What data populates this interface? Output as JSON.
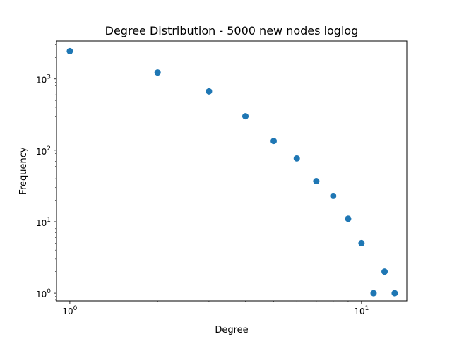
{
  "chart_data": {
    "type": "scatter",
    "title": "Degree Distribution - 5000 new nodes loglog",
    "xlabel": "Degree",
    "ylabel": "Frequency",
    "xscale": "log",
    "yscale": "log",
    "xlim": [
      0.9,
      14.3
    ],
    "ylim": [
      0.78,
      3400
    ],
    "grid": false,
    "legend": "none",
    "marker_color": "#1f77b4",
    "x_ticks": [
      {
        "value": 1,
        "base": "10",
        "exp": "0"
      },
      {
        "value": 10,
        "base": "10",
        "exp": "1"
      }
    ],
    "y_ticks": [
      {
        "value": 1,
        "base": "10",
        "exp": "0"
      },
      {
        "value": 10,
        "base": "10",
        "exp": "1"
      },
      {
        "value": 100,
        "base": "10",
        "exp": "2"
      },
      {
        "value": 1000,
        "base": "10",
        "exp": "3"
      }
    ],
    "points": [
      {
        "x": 1,
        "y": 2450
      },
      {
        "x": 2,
        "y": 1230
      },
      {
        "x": 3,
        "y": 670
      },
      {
        "x": 4,
        "y": 300
      },
      {
        "x": 5,
        "y": 135
      },
      {
        "x": 6,
        "y": 77
      },
      {
        "x": 7,
        "y": 37
      },
      {
        "x": 8,
        "y": 23
      },
      {
        "x": 9,
        "y": 11
      },
      {
        "x": 10,
        "y": 5
      },
      {
        "x": 11,
        "y": 1
      },
      {
        "x": 12,
        "y": 2
      },
      {
        "x": 13,
        "y": 1
      }
    ]
  }
}
